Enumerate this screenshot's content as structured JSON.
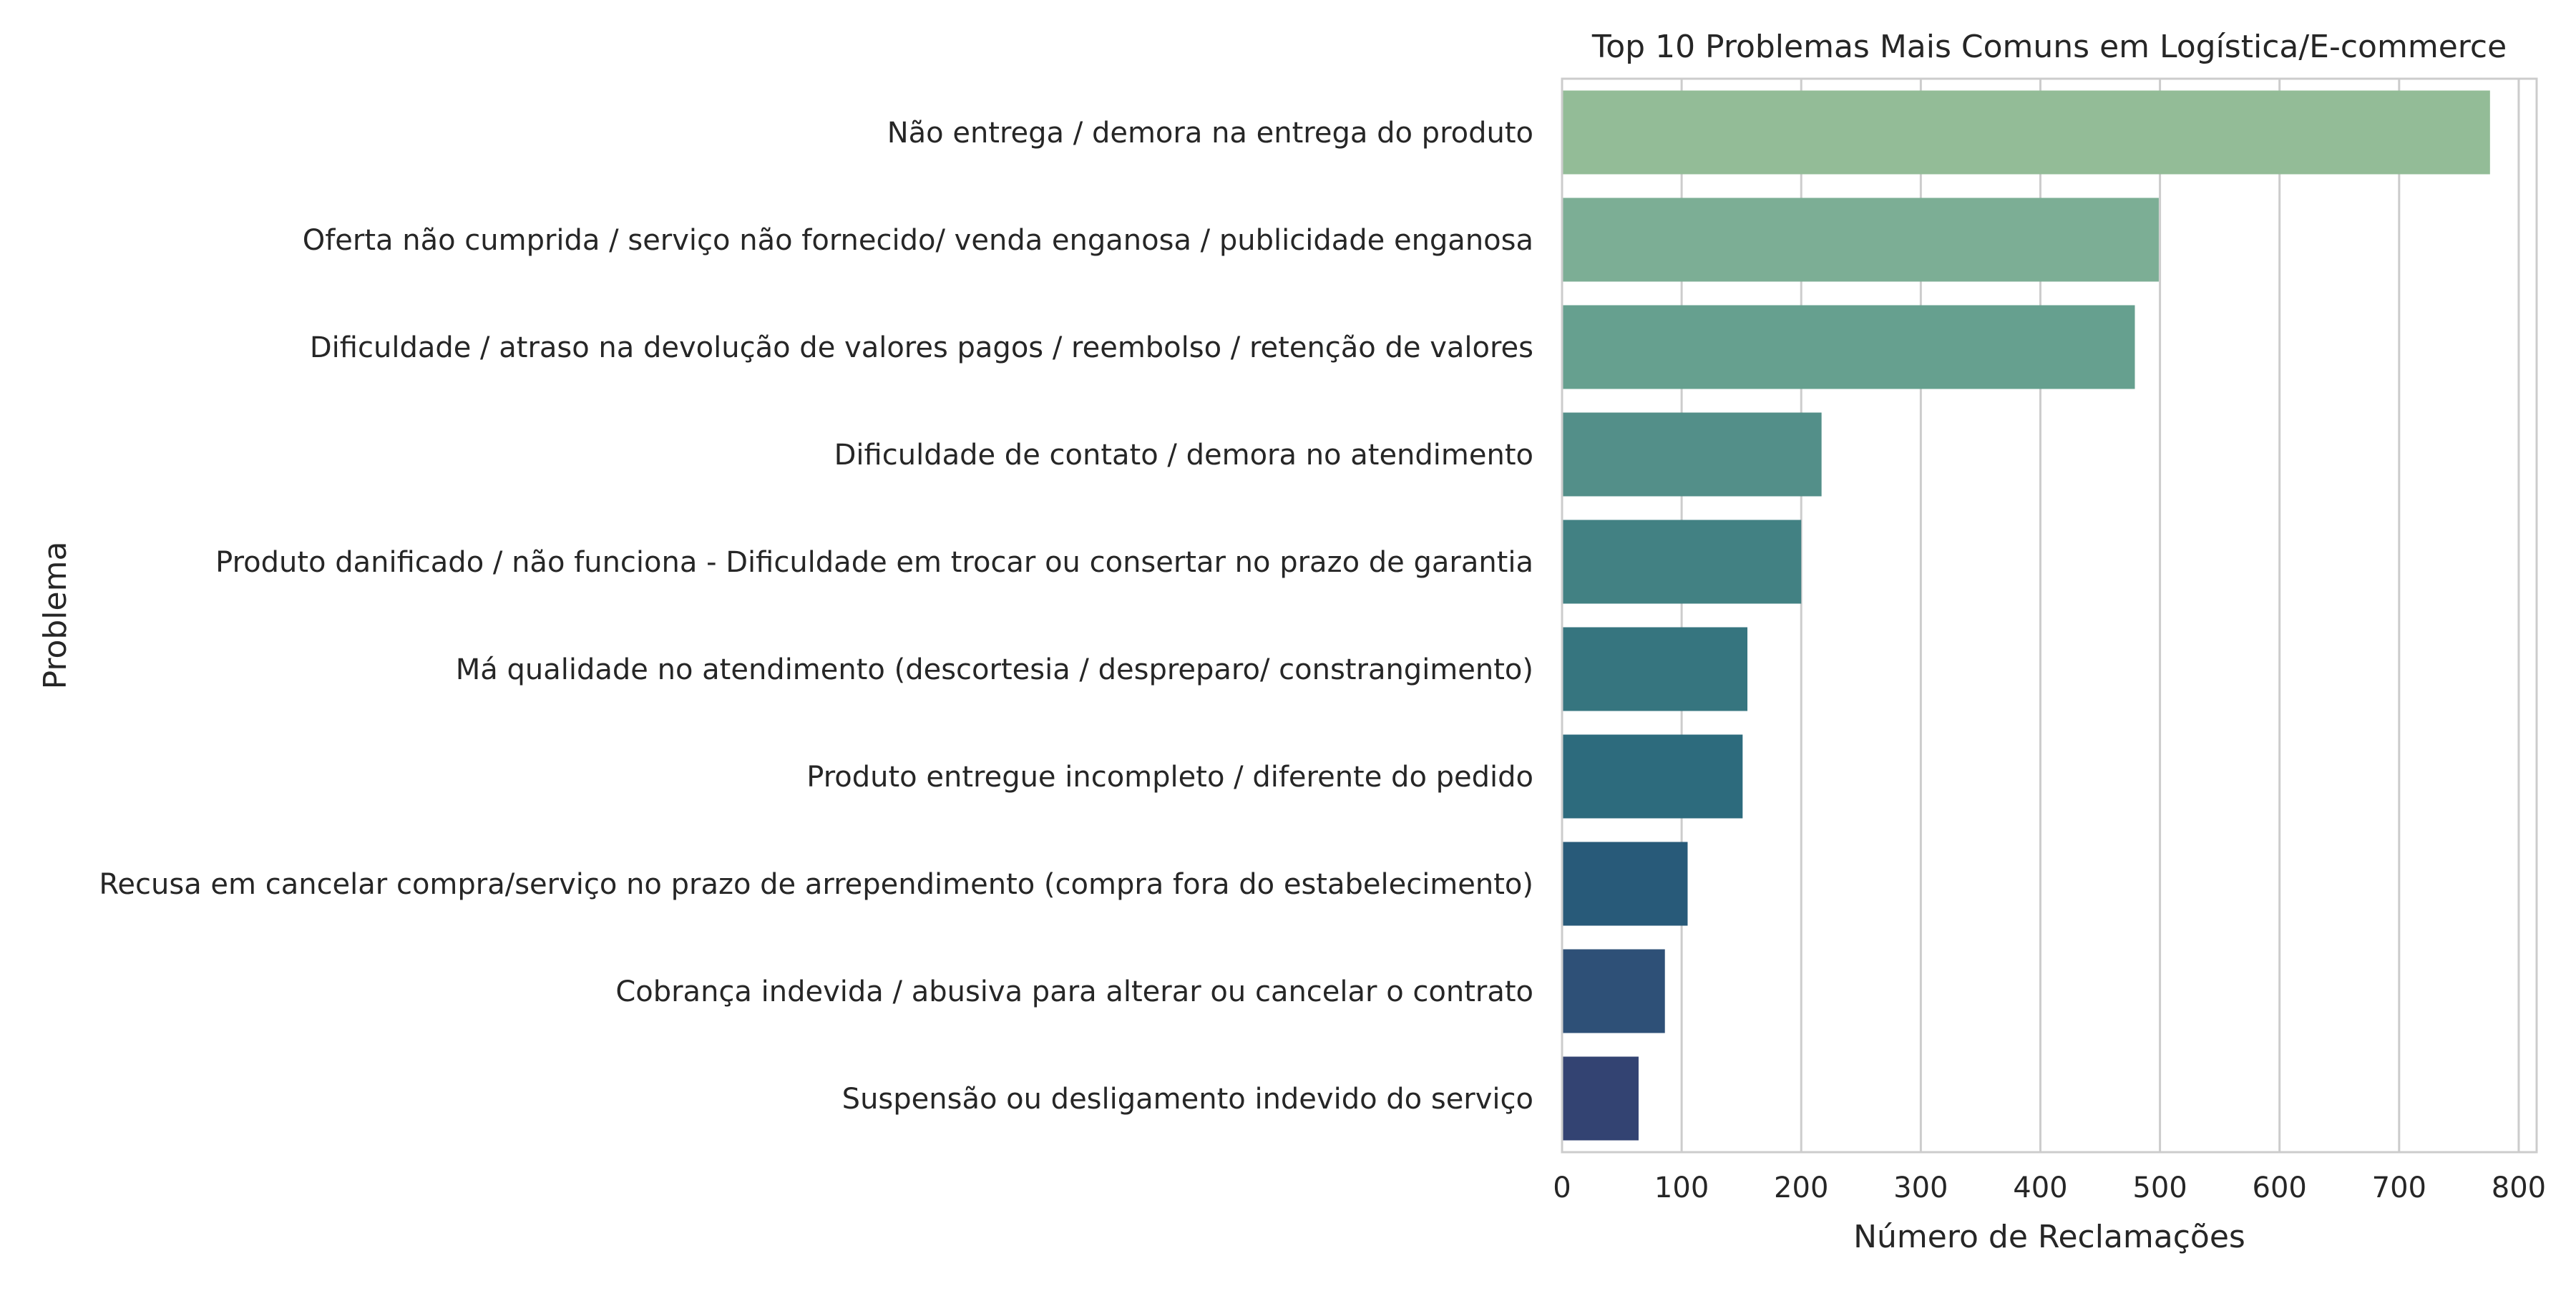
{
  "chart_data": {
    "type": "bar",
    "orientation": "horizontal",
    "title": "Top 10 Problemas Mais Comuns em Logística/E-commerce",
    "xlabel": "Número de Reclamações",
    "ylabel": "Problema",
    "xlim": [
      0,
      815
    ],
    "xticks": [
      0,
      100,
      200,
      300,
      400,
      500,
      600,
      700,
      800
    ],
    "grid": "vertical",
    "categories": [
      "Não entrega / demora na entrega do produto",
      "Oferta não cumprida / serviço não fornecido/ venda enganosa / publicidade enganosa",
      "Dificuldade / atraso na devolução de valores pagos / reembolso / retenção de valores",
      "Dificuldade de contato / demora no atendimento",
      "Produto danificado / não funciona - Dificuldade em trocar ou consertar no prazo de garantia",
      "Má qualidade no atendimento (descortesia / despreparo/ constrangimento)",
      "Produto entregue incompleto / diferente do  pedido",
      "Recusa em cancelar compra/serviço no prazo de arrependimento (compra fora do estabelecimento)",
      "Cobrança indevida / abusiva para alterar ou cancelar o contrato",
      "Suspensão ou desligamento indevido do serviço"
    ],
    "values": [
      776,
      499,
      479,
      217,
      200,
      155,
      151,
      105,
      86,
      64
    ],
    "colors": [
      "#93bc97",
      "#7cae95",
      "#66a08f",
      "#538f89",
      "#428183",
      "#36757f",
      "#2d6b7d",
      "#285a79",
      "#2e5077",
      "#334372"
    ]
  }
}
